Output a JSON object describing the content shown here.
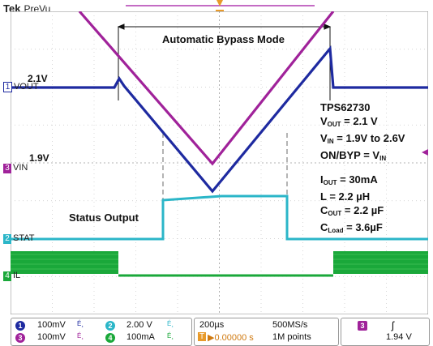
{
  "header": {
    "brand": "Tek",
    "mode": "PreVu"
  },
  "annotations": {
    "bypass_mode": "Automatic Bypass Mode",
    "status_output": "Status Output",
    "v21": "2.1V",
    "v19": "1.9V",
    "part": "TPS62730",
    "vout_line": {
      "sym": "V",
      "sub": "OUT",
      "rest": " = 2.1 V"
    },
    "vin_line": {
      "sym": "V",
      "sub": "IN",
      "rest": " = 1.9V to 2.6V"
    },
    "onbyp_line": {
      "pre": "ON/BYP = V",
      "sub": "IN"
    },
    "iout_line": {
      "sym": "I",
      "sub": "OUT",
      "rest": " = 30mA"
    },
    "l_line": "L = 2.2 µH",
    "cout_line": {
      "sym": "C",
      "sub": "OUT",
      "rest": " = 2.2 µF"
    },
    "cload_line": {
      "sym": "C",
      "sub": "Load",
      "rest": " = 3.6µF"
    }
  },
  "channels": [
    {
      "num": "1",
      "label": "VOUT",
      "color": "#1e2aa0"
    },
    {
      "num": "3",
      "label": "VIN",
      "color": "#a0229a"
    },
    {
      "num": "2",
      "label": "STAT",
      "color": "#2bb6c8"
    },
    {
      "num": "4",
      "label": "IL",
      "color": "#1aa83a"
    }
  ],
  "footer": {
    "ch1_scale": "100mV",
    "ch3_scale": "100mV",
    "ch2_scale": "2.00 V",
    "ch4_scale": "100mA",
    "bw_symbol": "É¸",
    "timebase": "200µs",
    "sample_rate": "500MS/s",
    "trigger_pos": "▶0.00000 s",
    "record_length": "1M points",
    "trigger_channel": "3",
    "trigger_slope": "ʃ",
    "trigger_level": "1.94 V"
  }
}
